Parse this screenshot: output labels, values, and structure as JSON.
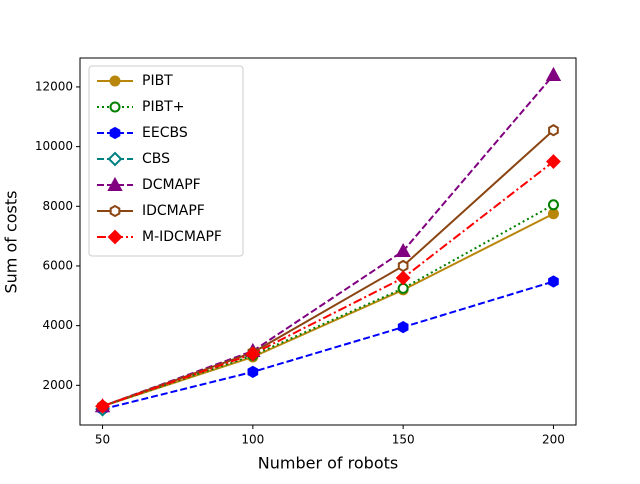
{
  "chart_data": {
    "type": "line",
    "xlabel": "Number of robots",
    "ylabel": "Sum of costs",
    "x": [
      50,
      100,
      150,
      200
    ],
    "xlim": [
      42.5,
      207.5
    ],
    "xticks": [
      50,
      100,
      150,
      200
    ],
    "ylim": [
      670,
      12970
    ],
    "yticks": [
      2000,
      4000,
      6000,
      8000,
      10000,
      12000
    ],
    "legend": "upper left",
    "grid": false,
    "series": [
      {
        "name": "PIBT",
        "color": "#b8860b",
        "linestyle": "solid",
        "marker": "circle",
        "filled": true,
        "values": [
          1300,
          2950,
          5200,
          7750
        ]
      },
      {
        "name": "PIBT+",
        "color": "#008000",
        "linestyle": "dotted",
        "marker": "circle",
        "filled": false,
        "values": [
          1300,
          3000,
          5250,
          8050
        ]
      },
      {
        "name": "EECBS",
        "color": "#0000ff",
        "linestyle": "dashed",
        "marker": "hexagon",
        "filled": true,
        "values": [
          1200,
          2450,
          3950,
          5480
        ]
      },
      {
        "name": "CBS",
        "color": "#008080",
        "linestyle": "dashed",
        "marker": "diamond",
        "filled": false,
        "values": [
          1200,
          null,
          null,
          null
        ]
      },
      {
        "name": "DCMAPF",
        "color": "#800080",
        "linestyle": "dashed",
        "marker": "triangle",
        "filled": true,
        "values": [
          1300,
          3150,
          6500,
          12400
        ]
      },
      {
        "name": "IDCMAPF",
        "color": "#8b4513",
        "linestyle": "solid",
        "marker": "hexagon",
        "filled": false,
        "values": [
          1300,
          3100,
          6000,
          10550
        ]
      },
      {
        "name": "M-IDCMAPF",
        "color": "#ff0000",
        "linestyle": "dashdot",
        "marker": "diamond",
        "filled": true,
        "values": [
          1300,
          3050,
          5600,
          9500
        ]
      }
    ]
  }
}
